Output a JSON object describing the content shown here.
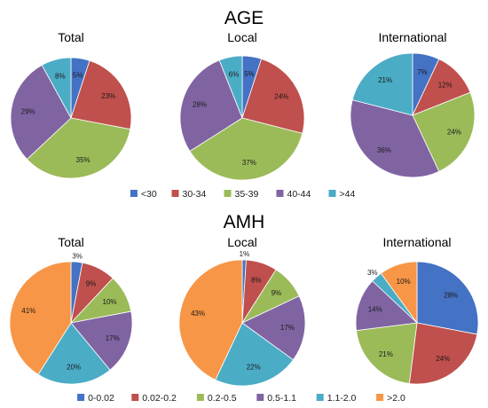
{
  "chart_data": [
    {
      "section": "AGE",
      "type": "pie",
      "title": "Total",
      "categories": [
        "<30",
        "30-34",
        "35-39",
        "40-44",
        ">44"
      ],
      "values": [
        5,
        23,
        35,
        29,
        8
      ],
      "labels": [
        "5%",
        "23%",
        "35%",
        "29%",
        "8%"
      ]
    },
    {
      "section": "AGE",
      "type": "pie",
      "title": "Local",
      "categories": [
        "<30",
        "30-34",
        "35-39",
        "40-44",
        ">44"
      ],
      "values": [
        5,
        24,
        37,
        28,
        6
      ],
      "labels": [
        "5%",
        "24%",
        "37%",
        "28%",
        "6%"
      ]
    },
    {
      "section": "AGE",
      "type": "pie",
      "title": "International",
      "categories": [
        "<30",
        "30-34",
        "35-39",
        "40-44",
        ">44"
      ],
      "values": [
        7,
        12,
        24,
        36,
        21
      ],
      "labels": [
        "7%",
        "12%",
        "24%",
        "36%",
        "21%"
      ]
    },
    {
      "section": "AMH",
      "type": "pie",
      "title": "Total",
      "categories": [
        "0-0.02",
        "0.02-0.2",
        "0.2-0.5",
        "0.5-1.1",
        "1.1-2.0",
        ">2.0"
      ],
      "values": [
        3,
        9,
        10,
        17,
        20,
        41
      ],
      "labels": [
        "3%",
        "9%",
        "10%",
        "17%",
        "20%",
        "41%"
      ]
    },
    {
      "section": "AMH",
      "type": "pie",
      "title": "Local",
      "categories": [
        "0-0.02",
        "0.02-0.2",
        "0.2-0.5",
        "0.5-1.1",
        "1.1-2.0",
        ">2.0"
      ],
      "values": [
        1,
        8,
        9,
        17,
        22,
        43
      ],
      "labels": [
        "1%",
        "8%",
        "9%",
        "17%",
        "22%",
        "43%"
      ]
    },
    {
      "section": "AMH",
      "type": "pie",
      "title": "International",
      "categories": [
        "0-0.02",
        "0.02-0.2",
        "0.2-0.5",
        "0.5-1.1",
        "1.1-2.0",
        ">2.0"
      ],
      "values": [
        28,
        24,
        21,
        14,
        3,
        10
      ],
      "labels": [
        "28%",
        "24%",
        "21%",
        "14%",
        "3%",
        "10%"
      ]
    }
  ],
  "sections": {
    "age": {
      "title": "AGE",
      "legend": [
        {
          "label": "<30",
          "color": "#4472c4"
        },
        {
          "label": "30-34",
          "color": "#c0504d"
        },
        {
          "label": "35-39",
          "color": "#9bbb59"
        },
        {
          "label": "40-44",
          "color": "#8064a2"
        },
        {
          "label": ">44",
          "color": "#4bacc6"
        }
      ]
    },
    "amh": {
      "title": "AMH",
      "legend": [
        {
          "label": "0-0.02",
          "color": "#4472c4"
        },
        {
          "label": "0.02-0.2",
          "color": "#c0504d"
        },
        {
          "label": "0.2-0.5",
          "color": "#9bbb59"
        },
        {
          "label": "0.5-1.1",
          "color": "#8064a2"
        },
        {
          "label": "1.1-2.0",
          "color": "#4bacc6"
        },
        {
          "label": ">2.0",
          "color": "#f79646"
        }
      ]
    }
  }
}
